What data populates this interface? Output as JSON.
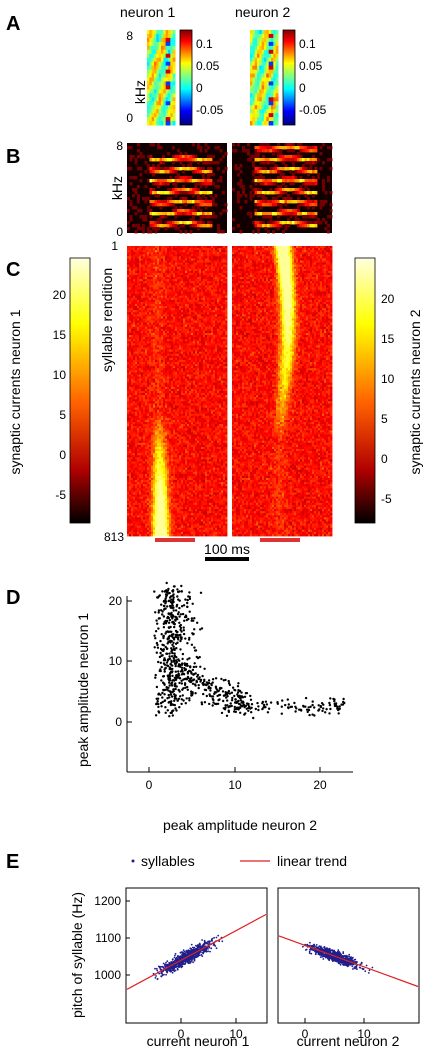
{
  "panels": {
    "A": {
      "label": "A",
      "neuron1_title": "neuron 1",
      "neuron2_title": "neuron 2",
      "ylabel": "kHz",
      "ytick_top": "8",
      "ytick_bottom": "0",
      "n1_cbar_ticks": [
        "0.1",
        "0.05",
        "0",
        "-0.05"
      ],
      "n2_cbar_ticks": [
        "0.1",
        "0.05",
        "0",
        "-0.05"
      ]
    },
    "B": {
      "label": "B",
      "ylabel": "kHz",
      "ytick_top": "8",
      "ytick_bottom": "0"
    },
    "C": {
      "label": "C",
      "ylabel": "syllable rendition",
      "ytick_top": "1",
      "ytick_bottom": "813",
      "left_cbar_label": "synaptic currents neuron 1",
      "right_cbar_label": "synaptic currents neuron 2",
      "cbar_ticks": [
        "20",
        "15",
        "10",
        "5",
        "0",
        "-5"
      ],
      "scale_bar_label": "100 ms",
      "scale_bar_color": "#000000",
      "window_bar_color": "#dd3333"
    },
    "D": {
      "label": "D",
      "xlabel": "peak amplitude neuron 2",
      "ylabel": "peak amplitude neuron 1",
      "xticks": [
        "0",
        "10",
        "20"
      ],
      "yticks": [
        "20",
        "10",
        "0"
      ]
    },
    "E": {
      "label": "E",
      "legend_points": "syllables",
      "legend_line": "linear trend",
      "ylabel": "pitch of syllable (Hz)",
      "yticks": [
        "1200",
        "1100",
        "1000"
      ],
      "left_xticks": [
        "0",
        "10"
      ],
      "right_xticks": [
        "0",
        "10"
      ],
      "left_xlabel": "current neuron 1",
      "right_xlabel": "current neuron 2",
      "point_color": "#1f1f8f",
      "trend_color": "#dd2222"
    }
  },
  "chart_data": [
    {
      "type": "scatter",
      "panel": "D",
      "xlabel": "peak amplitude neuron 2",
      "ylabel": "peak amplitude neuron 1",
      "xlim": [
        -2,
        24
      ],
      "ylim": [
        -3,
        25
      ],
      "n_points": 813,
      "points_sample": [
        [
          0.5,
          18
        ],
        [
          1.2,
          22
        ],
        [
          2.0,
          15
        ],
        [
          3.1,
          12
        ],
        [
          2.6,
          20
        ],
        [
          4.0,
          9
        ],
        [
          5.5,
          7
        ],
        [
          7.0,
          5
        ],
        [
          9.5,
          3
        ],
        [
          12.0,
          2.5
        ],
        [
          15.0,
          3
        ],
        [
          18.0,
          2
        ],
        [
          20.5,
          4
        ],
        [
          22.5,
          1
        ]
      ],
      "xticks": [
        0,
        10,
        20
      ],
      "yticks": [
        0,
        10,
        20
      ]
    },
    {
      "type": "scatter",
      "panel": "E-left",
      "xlabel": "current neuron 1",
      "ylabel": "pitch of syllable (Hz)",
      "xlim": [
        -9,
        15
      ],
      "ylim": [
        970,
        1200
      ],
      "trend": {
        "slope": 8.0,
        "intercept": 1040
      },
      "xticks": [
        0,
        10
      ],
      "yticks": [
        1000,
        1100,
        1200
      ]
    },
    {
      "type": "scatter",
      "panel": "E-right",
      "xlabel": "current neuron 2",
      "ylabel": "pitch of syllable (Hz)",
      "xlim": [
        -4,
        19
      ],
      "ylim": [
        970,
        1200
      ],
      "trend": {
        "slope": -5.8,
        "intercept": 1080
      },
      "xticks": [
        0,
        10
      ],
      "yticks": [
        1000,
        1100,
        1200
      ]
    }
  ]
}
